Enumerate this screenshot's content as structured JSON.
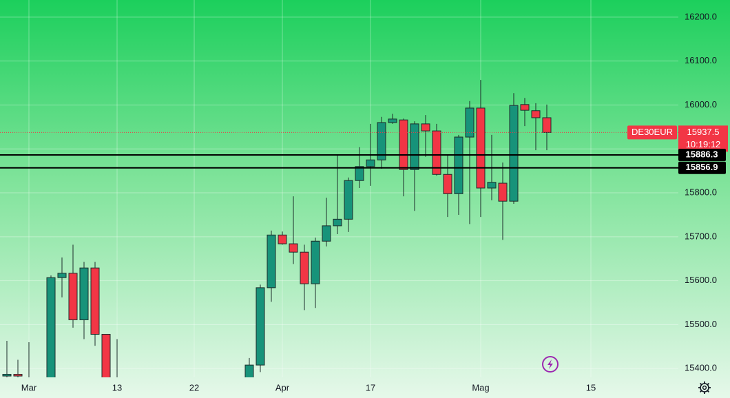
{
  "chart_data": {
    "type": "candlestick",
    "categories": [
      null,
      null,
      "Mar",
      null,
      null,
      null,
      null,
      null,
      null,
      null,
      "13",
      null,
      null,
      null,
      null,
      null,
      null,
      "22",
      null,
      null,
      null,
      null,
      null,
      null,
      null,
      "Apr",
      null,
      null,
      null,
      null,
      null,
      null,
      null,
      "17",
      null,
      null,
      null,
      null,
      null,
      null,
      null,
      null,
      null,
      "Mag",
      null,
      null,
      null,
      null,
      null,
      null,
      null,
      null,
      null,
      "15"
    ],
    "open": [
      15383,
      15387,
      15370,
      null,
      15360,
      15607,
      15617,
      15511,
      15629,
      15478,
      15370,
      null,
      null,
      null,
      null,
      null,
      null,
      null,
      null,
      null,
      null,
      null,
      15370,
      15408,
      15584,
      15704,
      15684,
      15665,
      15593,
      15690,
      15725,
      15740,
      15828,
      15860,
      15875,
      15960,
      15966,
      15853,
      15957,
      15941,
      15842,
      15798,
      15927,
      15993,
      15811,
      15822,
      15781,
      16001,
      15987,
      15971,
      null,
      null,
      null,
      null
    ],
    "high": [
      15463,
      15420,
      15460,
      null,
      15612,
      15653,
      15682,
      15643,
      15643,
      15478,
      15467,
      null,
      null,
      null,
      null,
      null,
      null,
      null,
      null,
      null,
      null,
      null,
      15424,
      15591,
      15714,
      15712,
      15792,
      15682,
      15698,
      15789,
      15886,
      15835,
      15904,
      15957,
      15973,
      15980,
      15969,
      15963,
      15977,
      15957,
      15886,
      15932,
      16009,
      16057,
      15932,
      15869,
      16027,
      16016,
      16004,
      16001,
      null,
      null,
      null,
      null
    ],
    "low": [
      15370,
      15370,
      15340,
      null,
      15350,
      15562,
      15493,
      15467,
      15452,
      15340,
      15340,
      null,
      null,
      null,
      null,
      null,
      null,
      null,
      null,
      null,
      null,
      null,
      15360,
      15392,
      15552,
      15682,
      15638,
      15533,
      15538,
      15678,
      15706,
      15711,
      15811,
      15816,
      15855,
      15957,
      15792,
      15759,
      15882,
      15839,
      15745,
      15750,
      15729,
      15745,
      15783,
      15693,
      15775,
      15952,
      15897,
      15897,
      null,
      null,
      null,
      null
    ],
    "close": [
      15387,
      15383,
      15360,
      null,
      15607,
      15617,
      15511,
      15629,
      15478,
      15360,
      15350,
      null,
      null,
      null,
      null,
      null,
      null,
      null,
      null,
      null,
      null,
      null,
      15408,
      15584,
      15704,
      15684,
      15665,
      15593,
      15690,
      15725,
      15740,
      15828,
      15860,
      15875,
      15960,
      15968,
      15853,
      15957,
      15941,
      15842,
      15798,
      15927,
      15993,
      15811,
      15824,
      15781,
      15999,
      15988,
      15971,
      15937.5,
      null,
      null,
      null,
      null
    ],
    "up_color": "#17937a",
    "down_color": "#f23645",
    "ylim": [
      15380,
      16239
    ],
    "yticks": [
      {
        "value": 15400,
        "label": "15400.0"
      },
      {
        "value": 15500,
        "label": "15500.0"
      },
      {
        "value": 15600,
        "label": "15600.0"
      },
      {
        "value": 15700,
        "label": "15700.0"
      },
      {
        "value": 15800,
        "label": "15800.0"
      },
      {
        "value": 15900,
        "label": "15900.0"
      },
      {
        "value": 16000,
        "label": "16000.0"
      },
      {
        "value": 16100,
        "label": "16100.0"
      },
      {
        "value": 16200,
        "label": "16200.0"
      }
    ],
    "grid": true,
    "price_lines": [
      15886.3,
      15856.9
    ],
    "last_price": {
      "symbol": "DE30EUR",
      "value": 15937.5,
      "countdown": "10:19:12"
    }
  }
}
